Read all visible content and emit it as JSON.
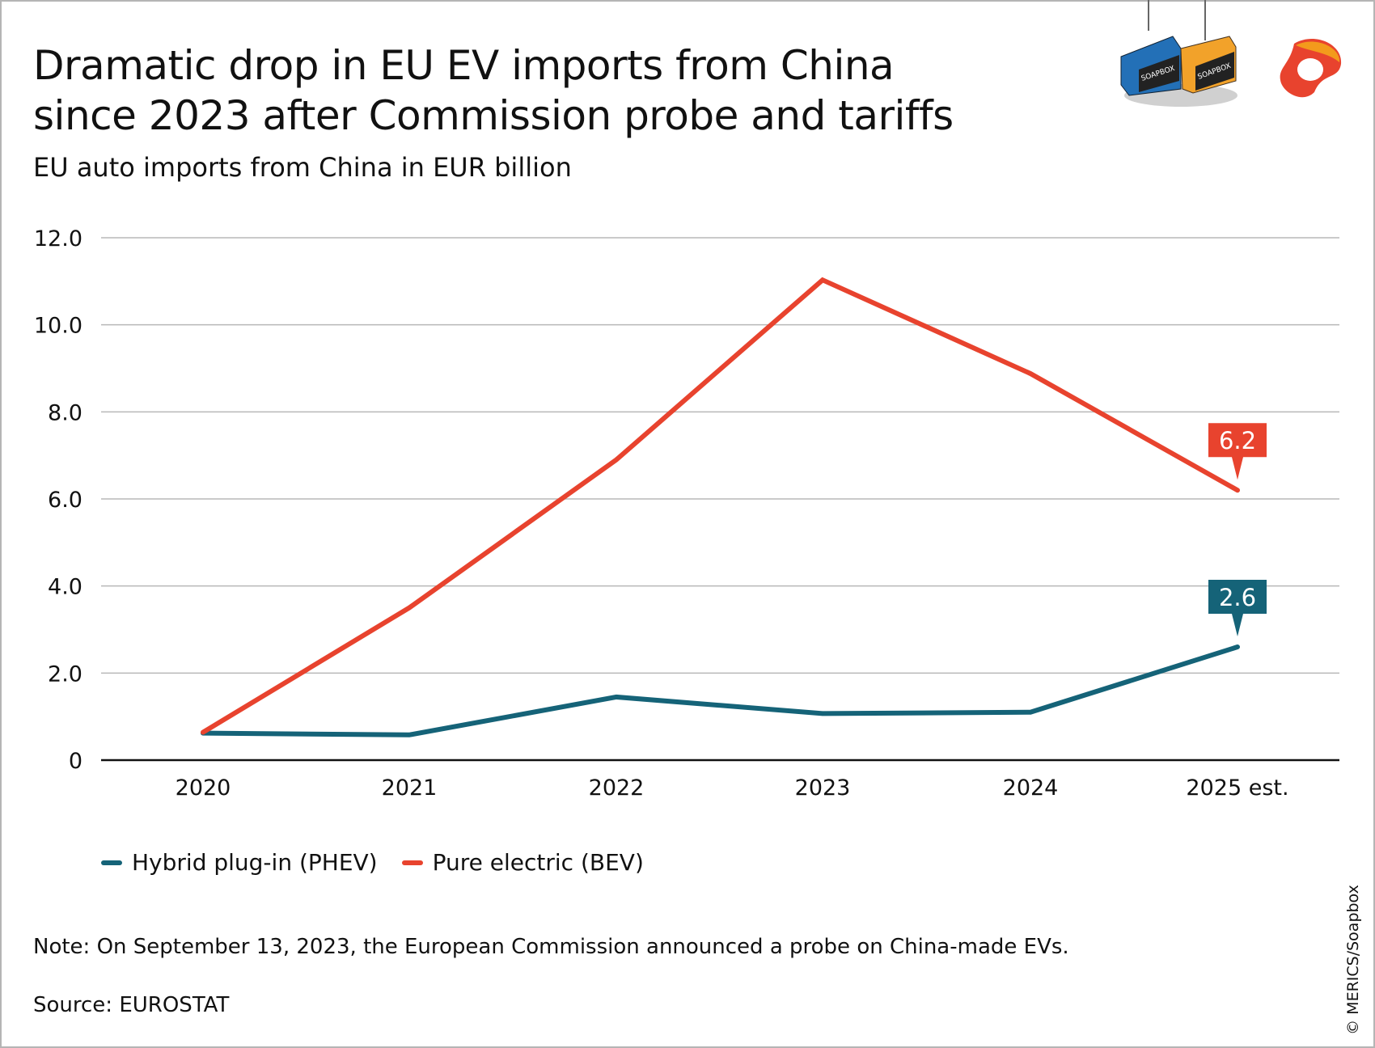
{
  "title": "Dramatic drop in EU EV imports from China since 2023 after Commission probe and tariffs",
  "subtitle": "EU auto imports from China in EUR billion",
  "note": "Note: On September 13, 2023, the European Commission announced a probe on China-made EVs.",
  "source": "Source: EUROSTAT",
  "copyright": "© MERICS/Soapbox",
  "logo_text": "SOAPBOX",
  "colors": {
    "phev": "#156378",
    "bev": "#e8432e",
    "grid": "#b8b8b8",
    "axis": "#111111"
  },
  "chart_data": {
    "type": "line",
    "title": "Dramatic drop in EU EV imports from China since 2023 after Commission probe and tariffs",
    "subtitle": "EU auto imports from China in EUR billion",
    "categories": [
      "2020",
      "2021",
      "2022",
      "2023",
      "2024",
      "2025 est."
    ],
    "ylim": [
      0,
      12
    ],
    "yticks": [
      0,
      2,
      4,
      6,
      8,
      10,
      12
    ],
    "ytick_labels": [
      "0",
      "2.0",
      "4.0",
      "6.0",
      "8.0",
      "10.0",
      "12.0"
    ],
    "grid": true,
    "legend_placement": "bottom-left",
    "series": [
      {
        "name": "Hybrid plug-in (PHEV)",
        "color": "#156378",
        "values": [
          0.62,
          0.58,
          1.45,
          1.07,
          1.1,
          2.6
        ],
        "end_label": "2.6"
      },
      {
        "name": "Pure electric (BEV)",
        "color": "#e8432e",
        "values": [
          0.64,
          3.5,
          6.9,
          11.03,
          8.88,
          6.2
        ],
        "end_label": "6.2"
      }
    ]
  }
}
